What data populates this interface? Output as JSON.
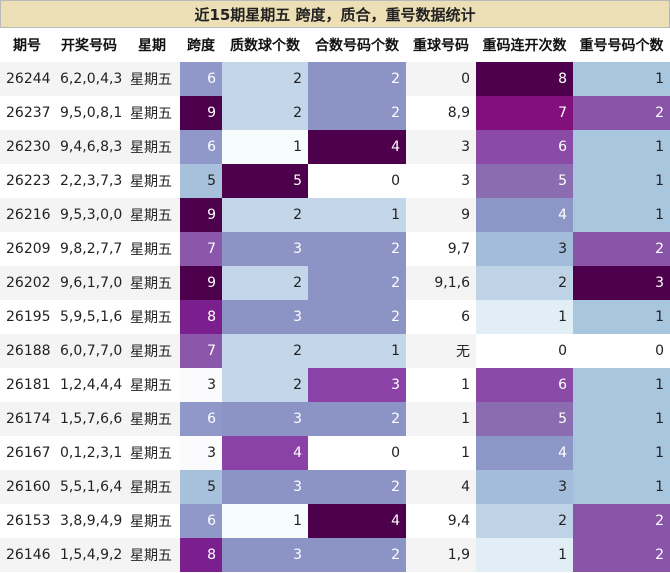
{
  "title": "近15期星期五 跨度，质合，重号数据统计",
  "headers": [
    "期号",
    "开奖号码",
    "星期",
    "跨度",
    "质数球个数",
    "合数号码个数",
    "重球号码",
    "重码连开次数",
    "重号号码个数"
  ],
  "rows": [
    {
      "issue": "26244",
      "numbers": "6,2,0,4,3",
      "weekday": "星期五",
      "span": "6",
      "primes": "2",
      "composites": "2",
      "repeat": "0",
      "consecutive": "8",
      "repeat_count": "1"
    },
    {
      "issue": "26237",
      "numbers": "9,5,0,8,1",
      "weekday": "星期五",
      "span": "9",
      "primes": "2",
      "composites": "2",
      "repeat": "8,9",
      "consecutive": "7",
      "repeat_count": "2"
    },
    {
      "issue": "26230",
      "numbers": "9,4,6,8,3",
      "weekday": "星期五",
      "span": "6",
      "primes": "1",
      "composites": "4",
      "repeat": "3",
      "consecutive": "6",
      "repeat_count": "1"
    },
    {
      "issue": "26223",
      "numbers": "2,2,3,7,3",
      "weekday": "星期五",
      "span": "5",
      "primes": "5",
      "composites": "0",
      "repeat": "3",
      "consecutive": "5",
      "repeat_count": "1"
    },
    {
      "issue": "26216",
      "numbers": "9,5,3,0,0",
      "weekday": "星期五",
      "span": "9",
      "primes": "2",
      "composites": "1",
      "repeat": "9",
      "consecutive": "4",
      "repeat_count": "1"
    },
    {
      "issue": "26209",
      "numbers": "9,8,2,7,7",
      "weekday": "星期五",
      "span": "7",
      "primes": "3",
      "composites": "2",
      "repeat": "9,7",
      "consecutive": "3",
      "repeat_count": "2"
    },
    {
      "issue": "26202",
      "numbers": "9,6,1,7,0",
      "weekday": "星期五",
      "span": "9",
      "primes": "2",
      "composites": "2",
      "repeat": "9,1,6",
      "consecutive": "2",
      "repeat_count": "3"
    },
    {
      "issue": "26195",
      "numbers": "5,9,5,1,6",
      "weekday": "星期五",
      "span": "8",
      "primes": "3",
      "composites": "2",
      "repeat": "6",
      "consecutive": "1",
      "repeat_count": "1"
    },
    {
      "issue": "26188",
      "numbers": "6,0,7,7,0",
      "weekday": "星期五",
      "span": "7",
      "primes": "2",
      "composites": "1",
      "repeat": "无",
      "consecutive": "0",
      "repeat_count": "0"
    },
    {
      "issue": "26181",
      "numbers": "1,2,4,4,4",
      "weekday": "星期五",
      "span": "3",
      "primes": "2",
      "composites": "3",
      "repeat": "1",
      "consecutive": "6",
      "repeat_count": "1"
    },
    {
      "issue": "26174",
      "numbers": "1,5,7,6,6",
      "weekday": "星期五",
      "span": "6",
      "primes": "3",
      "composites": "2",
      "repeat": "1",
      "consecutive": "5",
      "repeat_count": "1"
    },
    {
      "issue": "26167",
      "numbers": "0,1,2,3,1",
      "weekday": "星期五",
      "span": "3",
      "primes": "4",
      "composites": "0",
      "repeat": "1",
      "consecutive": "4",
      "repeat_count": "1"
    },
    {
      "issue": "26160",
      "numbers": "5,5,1,6,4",
      "weekday": "星期五",
      "span": "5",
      "primes": "3",
      "composites": "2",
      "repeat": "4",
      "consecutive": "3",
      "repeat_count": "1"
    },
    {
      "issue": "26153",
      "numbers": "3,8,9,4,9",
      "weekday": "星期五",
      "span": "6",
      "primes": "1",
      "composites": "4",
      "repeat": "9,4",
      "consecutive": "2",
      "repeat_count": "2"
    },
    {
      "issue": "26146",
      "numbers": "1,5,4,9,2",
      "weekday": "星期五",
      "span": "8",
      "primes": "3",
      "composites": "2",
      "repeat": "1,9",
      "consecutive": "1",
      "repeat_count": "2"
    }
  ],
  "colors": {
    "span": {
      "3": "#fbfbfd",
      "5": "#a7c1dd",
      "6": "#8f98c9",
      "7": "#8a57ab",
      "8": "#7b1f8f",
      "9": "#4d004b"
    },
    "primes": {
      "1": "#f7fcfd",
      "2": "#c3d6ea",
      "3": "#8c93c5",
      "4": "#8a42a6",
      "5": "#4d004b"
    },
    "composites": {
      "0": "#ffffff",
      "1": "#c3d6ea",
      "2": "#8c93c5",
      "3": "#8a42a6",
      "4": "#4d004b"
    },
    "consecutive": {
      "0": "#ffffff",
      "1": "#e2eef5",
      "2": "#bfd3e6",
      "3": "#a2bcda",
      "4": "#8c97c7",
      "5": "#8b6cb1",
      "6": "#8a4aa5",
      "7": "#810f7c",
      "8": "#4d004b"
    },
    "repeat_count": {
      "0": "#ffffff",
      "1": "#a9c6df",
      "2": "#8855a8",
      "3": "#4d004b"
    }
  }
}
